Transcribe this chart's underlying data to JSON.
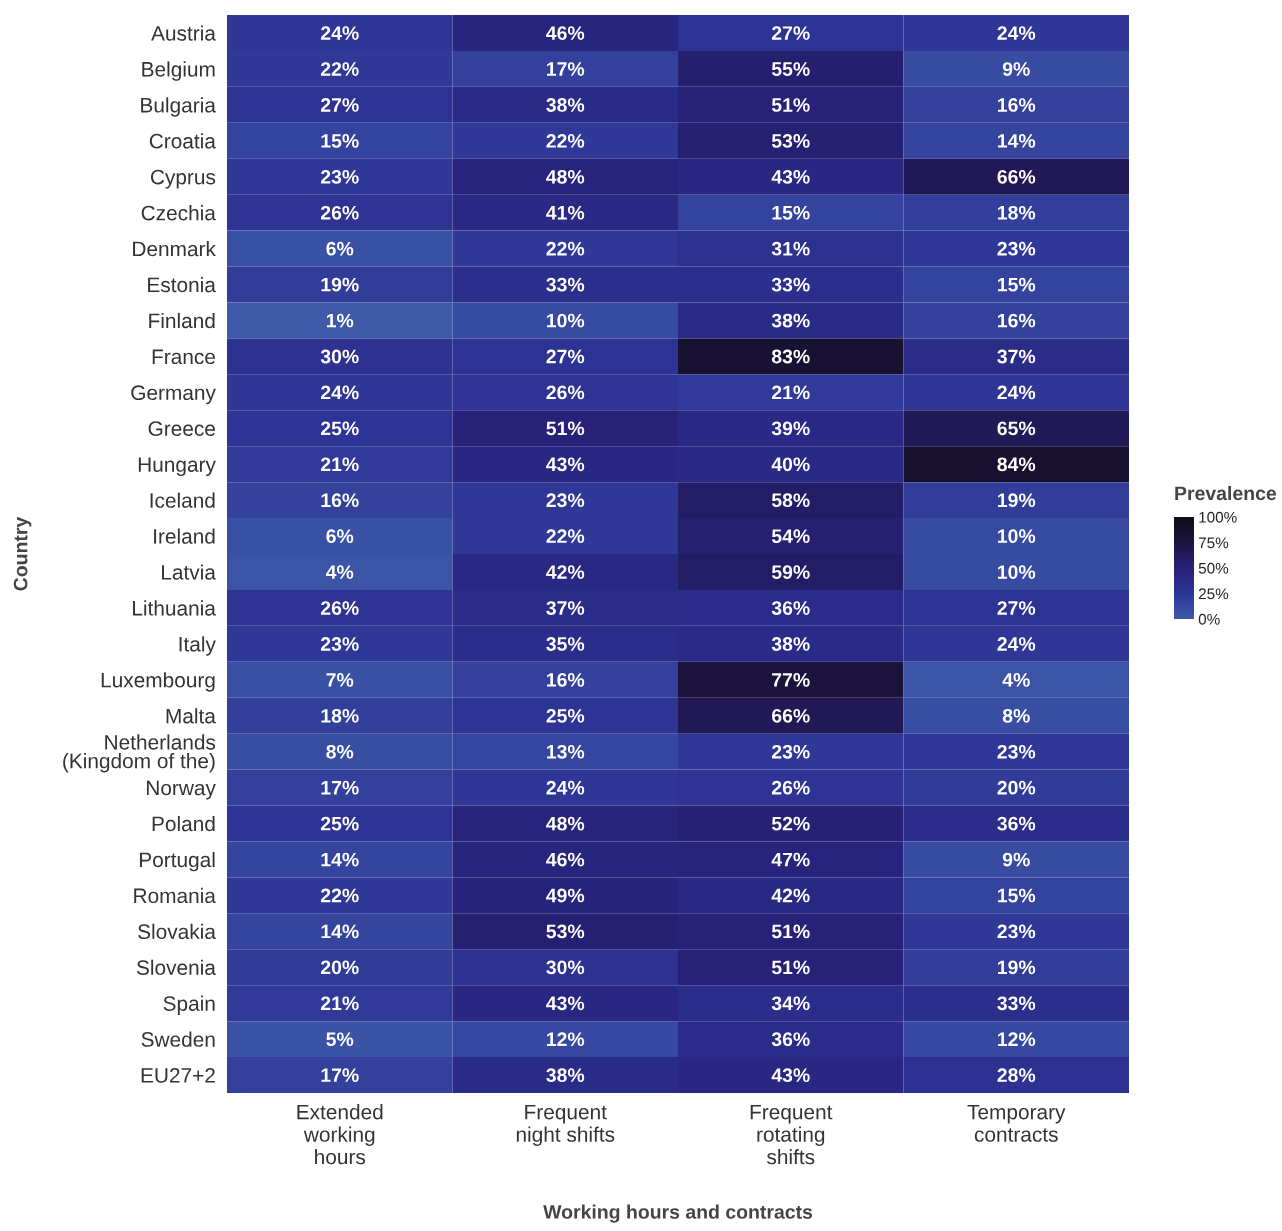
{
  "chart_data": {
    "type": "heatmap",
    "xlabel": "Working hours and contracts",
    "ylabel": "Country",
    "clabel": "Prevalence",
    "categories": [
      "Extended\nworking\nhours",
      "Frequent\nnight shifts",
      "Frequent\nrotating\nshifts",
      "Temporary\ncontracts"
    ],
    "y_categories": [
      "Austria",
      "Belgium",
      "Bulgaria",
      "Croatia",
      "Cyprus",
      "Czechia",
      "Denmark",
      "Estonia",
      "Finland",
      "France",
      "Germany",
      "Greece",
      "Hungary",
      "Iceland",
      "Ireland",
      "Latvia",
      "Lithuania",
      "Italy",
      "Luxembourg",
      "Malta",
      "Netherlands\n(Kingdom of the)",
      "Norway",
      "Poland",
      "Portugal",
      "Romania",
      "Slovakia",
      "Slovenia",
      "Spain",
      "Sweden",
      "EU27+2"
    ],
    "cells": [
      [
        24,
        46,
        27,
        24
      ],
      [
        22,
        17,
        55,
        9
      ],
      [
        27,
        38,
        51,
        16
      ],
      [
        15,
        22,
        53,
        14
      ],
      [
        23,
        48,
        43,
        66
      ],
      [
        26,
        41,
        15,
        18
      ],
      [
        6,
        22,
        31,
        23
      ],
      [
        19,
        33,
        33,
        15
      ],
      [
        1,
        10,
        38,
        16
      ],
      [
        30,
        27,
        83,
        37
      ],
      [
        24,
        26,
        21,
        24
      ],
      [
        25,
        51,
        39,
        65
      ],
      [
        21,
        43,
        40,
        84
      ],
      [
        16,
        23,
        58,
        19
      ],
      [
        6,
        22,
        54,
        10
      ],
      [
        4,
        42,
        59,
        10
      ],
      [
        26,
        37,
        36,
        27
      ],
      [
        23,
        35,
        38,
        24
      ],
      [
        7,
        16,
        77,
        4
      ],
      [
        18,
        25,
        66,
        8
      ],
      [
        8,
        13,
        23,
        23
      ],
      [
        17,
        24,
        26,
        20
      ],
      [
        25,
        48,
        52,
        36
      ],
      [
        14,
        46,
        47,
        9
      ],
      [
        22,
        49,
        42,
        15
      ],
      [
        14,
        53,
        51,
        23
      ],
      [
        20,
        30,
        51,
        19
      ],
      [
        21,
        43,
        34,
        33
      ],
      [
        5,
        12,
        36,
        12
      ],
      [
        17,
        38,
        43,
        28
      ]
    ],
    "cell_labels": [
      [
        "24%",
        "46%",
        "27%",
        "24%"
      ],
      [
        "22%",
        "17%",
        "55%",
        "9%"
      ],
      [
        "27%",
        "38%",
        "51%",
        "16%"
      ],
      [
        "15%",
        "22%",
        "53%",
        "14%"
      ],
      [
        "23%",
        "48%",
        "43%",
        "66%"
      ],
      [
        "26%",
        "41%",
        "15%",
        "18%"
      ],
      [
        "6%",
        "22%",
        "31%",
        "23%"
      ],
      [
        "19%",
        "33%",
        "33%",
        "15%"
      ],
      [
        "1%",
        "10%",
        "38%",
        "16%"
      ],
      [
        "30%",
        "27%",
        "83%",
        "37%"
      ],
      [
        "24%",
        "26%",
        "21%",
        "24%"
      ],
      [
        "25%",
        "51%",
        "39%",
        "65%"
      ],
      [
        "21%",
        "43%",
        "40%",
        "84%"
      ],
      [
        "16%",
        "23%",
        "58%",
        "19%"
      ],
      [
        "6%",
        "22%",
        "54%",
        "10%"
      ],
      [
        "4%",
        "42%",
        "59%",
        "10%"
      ],
      [
        "26%",
        "37%",
        "36%",
        "27%"
      ],
      [
        "23%",
        "35%",
        "38%",
        "24%"
      ],
      [
        "7%",
        "16%",
        "77%",
        "4%"
      ],
      [
        "18%",
        "25%",
        "66%",
        "8%"
      ],
      [
        "8%",
        "13%",
        "23%",
        "23%"
      ],
      [
        "17%",
        "24%",
        "26%",
        "20%"
      ],
      [
        "25%",
        "48%",
        "52%",
        "36%"
      ],
      [
        "14%",
        "46%",
        "47%",
        "9%"
      ],
      [
        "22%",
        "49%",
        "42%",
        "15%"
      ],
      [
        "14%",
        "53%",
        "51%",
        "23%"
      ],
      [
        "20%",
        "30%",
        "51%",
        "19%"
      ],
      [
        "21%",
        "43%",
        "34%",
        "33%"
      ],
      [
        "5%",
        "12%",
        "36%",
        "12%"
      ],
      [
        "17%",
        "38%",
        "43%",
        "28%"
      ]
    ],
    "clim": [
      0,
      100
    ],
    "cticks": [
      {
        "value": 0,
        "label": "0%"
      },
      {
        "value": 25,
        "label": "25%"
      },
      {
        "value": 50,
        "label": "50%"
      },
      {
        "value": 75,
        "label": "75%"
      },
      {
        "value": 100,
        "label": "100%"
      }
    ]
  }
}
